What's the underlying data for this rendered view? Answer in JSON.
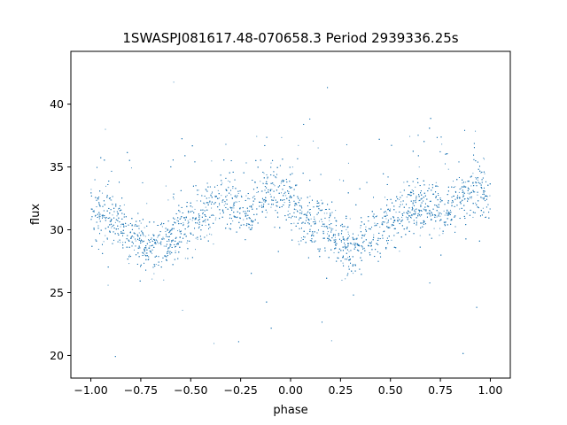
{
  "chart_data": {
    "type": "scatter",
    "title": "1SWASPJ081617.48-070658.3 Period 2939336.25s",
    "xlabel": "phase",
    "ylabel": "flux",
    "xlim": [
      -1.1,
      1.1
    ],
    "ylim": [
      18.2,
      44.2
    ],
    "xticks": [
      -1.0,
      -0.75,
      -0.5,
      -0.25,
      0.0,
      0.25,
      0.5,
      0.75,
      1.0
    ],
    "xtick_labels": [
      "−1.00",
      "−0.75",
      "−0.50",
      "−0.25",
      "0.00",
      "0.25",
      "0.50",
      "0.75",
      "1.00"
    ],
    "yticks": [
      20,
      25,
      30,
      35,
      40
    ],
    "ytick_labels": [
      "20",
      "25",
      "30",
      "35",
      "40"
    ],
    "grid": false,
    "legend": "none",
    "point_color": "#1f77b4",
    "point_count_approx": 6000,
    "phase_folded": true,
    "light_curve_points": [
      {
        "phase": -1.0,
        "flux": 32.0
      },
      {
        "phase": -0.95,
        "flux": 31.0
      },
      {
        "phase": -0.9,
        "flux": 30.8
      },
      {
        "phase": -0.85,
        "flux": 30.5
      },
      {
        "phase": -0.8,
        "flux": 29.8
      },
      {
        "phase": -0.75,
        "flux": 29.0
      },
      {
        "phase": -0.7,
        "flux": 28.6
      },
      {
        "phase": -0.65,
        "flux": 28.8
      },
      {
        "phase": -0.6,
        "flux": 29.2
      },
      {
        "phase": -0.55,
        "flux": 29.8
      },
      {
        "phase": -0.5,
        "flux": 30.8
      },
      {
        "phase": -0.45,
        "flux": 31.2
      },
      {
        "phase": -0.4,
        "flux": 31.8
      },
      {
        "phase": -0.35,
        "flux": 32.0
      },
      {
        "phase": -0.3,
        "flux": 32.0
      },
      {
        "phase": -0.25,
        "flux": 31.7
      },
      {
        "phase": -0.2,
        "flux": 31.8
      },
      {
        "phase": -0.15,
        "flux": 32.4
      },
      {
        "phase": -0.1,
        "flux": 33.0
      },
      {
        "phase": -0.05,
        "flux": 33.5
      },
      {
        "phase": 0.0,
        "flux": 32.0
      },
      {
        "phase": 0.05,
        "flux": 31.0
      },
      {
        "phase": 0.1,
        "flux": 30.8
      },
      {
        "phase": 0.15,
        "flux": 30.5
      },
      {
        "phase": 0.2,
        "flux": 29.8
      },
      {
        "phase": 0.25,
        "flux": 29.0
      },
      {
        "phase": 0.3,
        "flux": 28.6
      },
      {
        "phase": 0.35,
        "flux": 28.8
      },
      {
        "phase": 0.4,
        "flux": 29.2
      },
      {
        "phase": 0.45,
        "flux": 29.8
      },
      {
        "phase": 0.5,
        "flux": 30.8
      },
      {
        "phase": 0.55,
        "flux": 31.2
      },
      {
        "phase": 0.6,
        "flux": 31.8
      },
      {
        "phase": 0.65,
        "flux": 32.0
      },
      {
        "phase": 0.7,
        "flux": 32.0
      },
      {
        "phase": 0.75,
        "flux": 31.7
      },
      {
        "phase": 0.8,
        "flux": 31.8
      },
      {
        "phase": 0.85,
        "flux": 32.4
      },
      {
        "phase": 0.9,
        "flux": 33.0
      },
      {
        "phase": 0.95,
        "flux": 33.5
      },
      {
        "phase": 1.0,
        "flux": 32.0
      }
    ],
    "flux_spread": 2.4
  }
}
